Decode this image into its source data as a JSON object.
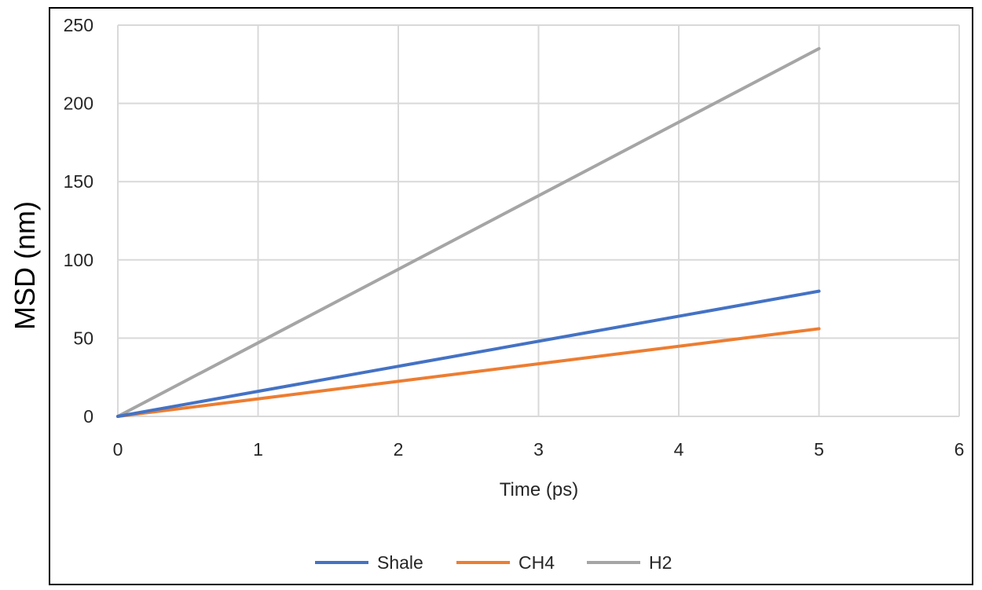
{
  "chart_data": {
    "type": "line",
    "title": "",
    "xlabel": "Time (ps)",
    "ylabel": "MSD (nm)",
    "xlim": [
      0,
      6
    ],
    "ylim": [
      0,
      250
    ],
    "xticks": [
      0,
      1,
      2,
      3,
      4,
      5,
      6
    ],
    "yticks": [
      0,
      50,
      100,
      150,
      200,
      250
    ],
    "grid": true,
    "legend_position": "bottom",
    "series": [
      {
        "name": "Shale",
        "color": "#4472C4",
        "x": [
          0,
          5
        ],
        "y": [
          0,
          80
        ]
      },
      {
        "name": "CH4",
        "color": "#ED7D31",
        "x": [
          0,
          5
        ],
        "y": [
          0,
          56
        ]
      },
      {
        "name": "H2",
        "color": "#A5A5A5",
        "x": [
          0,
          5
        ],
        "y": [
          0,
          235
        ]
      }
    ]
  }
}
